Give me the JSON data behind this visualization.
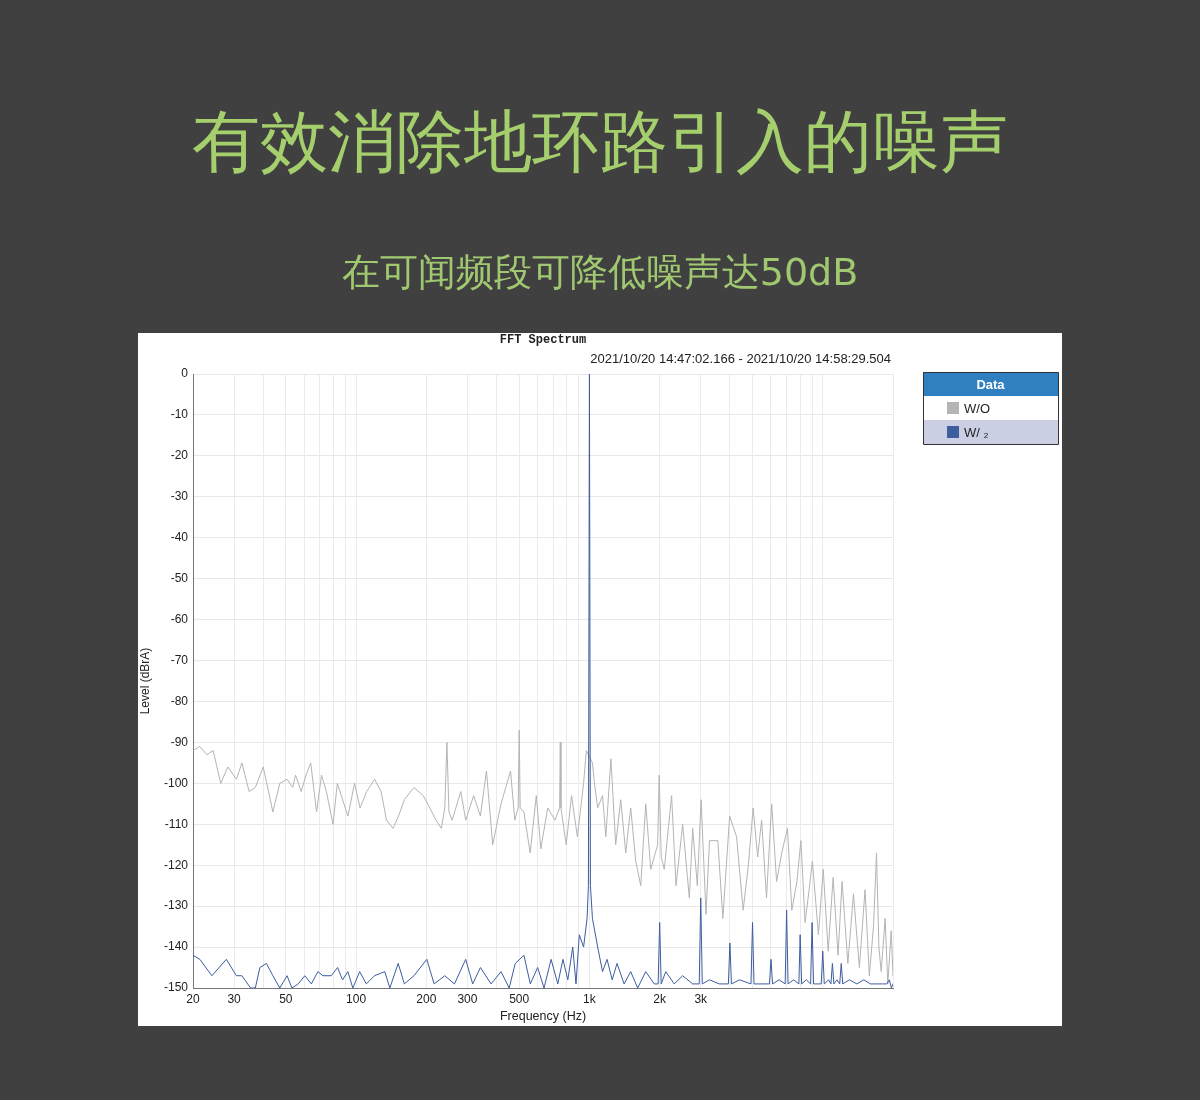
{
  "chart_data": {
    "type": "line",
    "title": "有效消除地环路引入的噪声",
    "subtitle": "在可闻频段可降低噪声达50dB",
    "annotations": [
      "FFT Spectrum",
      "2021/10/20 14:47:02.166 - 2021/10/20 14:58:29.504"
    ],
    "xlabel": "Frequency (Hz)",
    "ylabel": "Level (dBrA)",
    "legend_title": "Data",
    "legend": "top right",
    "grid": true,
    "log": "x",
    "xlim": [
      20,
      20000
    ],
    "ylim": [
      -150,
      0
    ],
    "xticks": [
      20,
      30,
      {
        "value": 40,
        "label": null
      },
      50,
      {
        "value": 60,
        "label": null
      },
      {
        "value": 70,
        "label": null
      },
      {
        "value": 80,
        "label": null
      },
      {
        "value": 90,
        "label": null
      },
      100,
      200,
      300,
      {
        "value": 400,
        "label": null
      },
      500,
      {
        "value": 600,
        "label": null
      },
      {
        "value": 700,
        "label": null
      },
      {
        "value": 800,
        "label": null
      },
      {
        "value": 900,
        "label": null
      },
      {
        "value": 1000,
        "label": "1k"
      },
      {
        "value": 2000,
        "label": "2k"
      },
      {
        "value": 3000,
        "label": "3k"
      },
      {
        "value": 4000,
        "label": null
      },
      {
        "value": 5000,
        "label": null
      },
      {
        "value": 6000,
        "label": null
      },
      {
        "value": 7000,
        "label": null
      },
      {
        "value": 8000,
        "label": null
      },
      {
        "value": 9000,
        "label": null
      },
      {
        "value": 10000,
        "label": null
      },
      {
        "value": 20000,
        "label": null
      }
    ],
    "yticks": [
      -150,
      -140,
      -130,
      -120,
      -110,
      -100,
      -90,
      -80,
      -70,
      -60,
      -50,
      -40,
      -30,
      -20,
      -10,
      0
    ],
    "series": [
      {
        "name": "W/O",
        "color": "#b4b4b4",
        "x": [
          20,
          21.4,
          22.9,
          24.4,
          26.3,
          28.2,
          30.7,
          32.4,
          34.8,
          37,
          40,
          44,
          47.1,
          50.6,
          53.5,
          55,
          58.2,
          61,
          63.9,
          67.7,
          71.1,
          74.6,
          79.6,
          83.1,
          86.4,
          92.2,
          98.5,
          104,
          111,
          120,
          128,
          135,
          144,
          152,
          161,
          177,
          194,
          207,
          220,
          232,
          240,
          245,
          250,
          258,
          281,
          295,
          319,
          341,
          362,
          385,
          418,
          459,
          479,
          495,
          500,
          505,
          524,
          557,
          592,
          619,
          663,
          712,
          745,
          750,
          755,
          795,
          838,
          888,
          922,
          944,
          970,
          1030,
          1051,
          1085,
          1138,
          1176,
          1236,
          1296,
          1362,
          1431,
          1503,
          1579,
          1659,
          1743,
          1831,
          1960,
          1991,
          2030,
          2093,
          2250,
          2350,
          2510,
          2680,
          2770,
          2900,
          3010,
          3160,
          3270,
          3550,
          3730,
          3990,
          4270,
          4560,
          4800,
          5030,
          5260,
          5470,
          5740,
          6040,
          6340,
          6670,
          7060,
          7370,
          7750,
          8060,
          8400,
          8740,
          9030,
          9580,
          10050,
          10550,
          11080,
          11630,
          12100,
          12810,
          13540,
          14350,
          15180,
          15830,
          16500,
          17000,
          17400,
          17800,
          18510,
          19000,
          19650,
          20000
        ],
        "values": [
          -92,
          -91,
          -93,
          -92,
          -100,
          -96,
          -99,
          -95,
          -102,
          -101,
          -96,
          -107,
          -100,
          -99,
          -101,
          -98,
          -102,
          -98,
          -95,
          -107,
          -98,
          -102,
          -110,
          -100,
          -103,
          -108,
          -100,
          -106,
          -102,
          -99,
          -102,
          -109,
          -111,
          -108,
          -104,
          -101,
          -103,
          -106,
          -109,
          -111,
          -106,
          -90,
          -107,
          -109,
          -102,
          -109,
          -103,
          -108,
          -97,
          -115,
          -105,
          -97,
          -109,
          -106,
          -87,
          -106,
          -107,
          -117,
          -103,
          -116,
          -106,
          -109,
          -106,
          -90,
          -106,
          -115,
          -103,
          -113,
          -105,
          -100,
          -92,
          -95,
          -100,
          -106,
          -103,
          -113,
          -94,
          -115,
          -104,
          -117,
          -106,
          -119,
          -125,
          -105,
          -121,
          -115,
          -98,
          -118,
          -121,
          -103,
          -125,
          -110,
          -128,
          -111,
          -125,
          -104,
          -132,
          -114,
          -114,
          -133,
          -108,
          -113,
          -131,
          -120,
          -106,
          -118,
          -109,
          -128,
          -105,
          -124,
          -117,
          -111,
          -131,
          -124,
          -114,
          -134,
          -126,
          -119,
          -137,
          -121,
          -141,
          -123,
          -142,
          -124,
          -144,
          -127,
          -145,
          -126,
          -147,
          -135,
          -117,
          -140,
          -146,
          -133,
          -149,
          -136,
          -147
        ]
      },
      {
        "name": "W/ ₂",
        "color": "#3d5d9f",
        "x": [
          20,
          21.4,
          24.1,
          27.8,
          30.7,
          32.4,
          35.3,
          37,
          38.7,
          41.3,
          44,
          47.1,
          50.6,
          53.1,
          56.5,
          60.3,
          64.3,
          68.6,
          72.1,
          78.3,
          83.3,
          87.5,
          92.2,
          96.8,
          103.6,
          110.6,
          120,
          132.7,
          139.5,
          151.5,
          161,
          177,
          201,
          216,
          240,
          264,
          295,
          316,
          341,
          379,
          418,
          453,
          481,
          524,
          558,
          600,
          639,
          685,
          732,
          770,
          808,
          848,
          876,
          905,
          944,
          977,
          990,
          1000,
          1010,
          1030,
          1085,
          1138,
          1190,
          1252,
          1313,
          1408,
          1503,
          1610,
          1743,
          1896,
          1970,
          2000,
          2030,
          2124,
          2308,
          2510,
          2770,
          2955,
          3000,
          3045,
          3270,
          3600,
          3940,
          4000,
          4060,
          4400,
          4925,
          5000,
          5075,
          5560,
          5910,
          6000,
          6090,
          6500,
          6900,
          7000,
          7100,
          7500,
          7900,
          8000,
          8120,
          8500,
          8870,
          9000,
          9130,
          9500,
          9850,
          10000,
          10150,
          10600,
          10840,
          11000,
          11160,
          11500,
          11820,
          12000,
          12180,
          13000,
          14000,
          15000,
          16000,
          17000,
          18000,
          18800,
          19300,
          19700,
          20000
        ],
        "values": [
          -142,
          -143,
          -147,
          -143,
          -147,
          -147,
          -150,
          -150,
          -145,
          -144,
          -147,
          -150,
          -147,
          -150,
          -149,
          -147,
          -149,
          -146,
          -147,
          -147,
          -145,
          -148,
          -146,
          -150,
          -146,
          -149,
          -147,
          -146,
          -150,
          -144,
          -149,
          -147,
          -143,
          -149,
          -147,
          -149,
          -143,
          -149,
          -145,
          -149,
          -146,
          -150,
          -144,
          -142,
          -149,
          -145,
          -150,
          -143,
          -149,
          -143,
          -148,
          -140,
          -149,
          -137,
          -140,
          -133,
          -125,
          0,
          -125,
          -133,
          -140,
          -146,
          -143,
          -148,
          -144,
          -149,
          -146,
          -150,
          -146,
          -149,
          -149,
          -134,
          -149,
          -146,
          -149,
          -147,
          -149,
          -149,
          -128,
          -149,
          -148,
          -149,
          -149,
          -139,
          -149,
          -148,
          -149,
          -134,
          -149,
          -149,
          -149,
          -143,
          -149,
          -148,
          -149,
          -131,
          -149,
          -148,
          -149,
          -137,
          -149,
          -148,
          -149,
          -134,
          -149,
          -149,
          -149,
          -141,
          -149,
          -148,
          -149,
          -144,
          -149,
          -148,
          -149,
          -144,
          -149,
          -148,
          -149,
          -148,
          -149,
          -149,
          -149,
          -149,
          -148,
          -150,
          -149
        ]
      }
    ]
  }
}
